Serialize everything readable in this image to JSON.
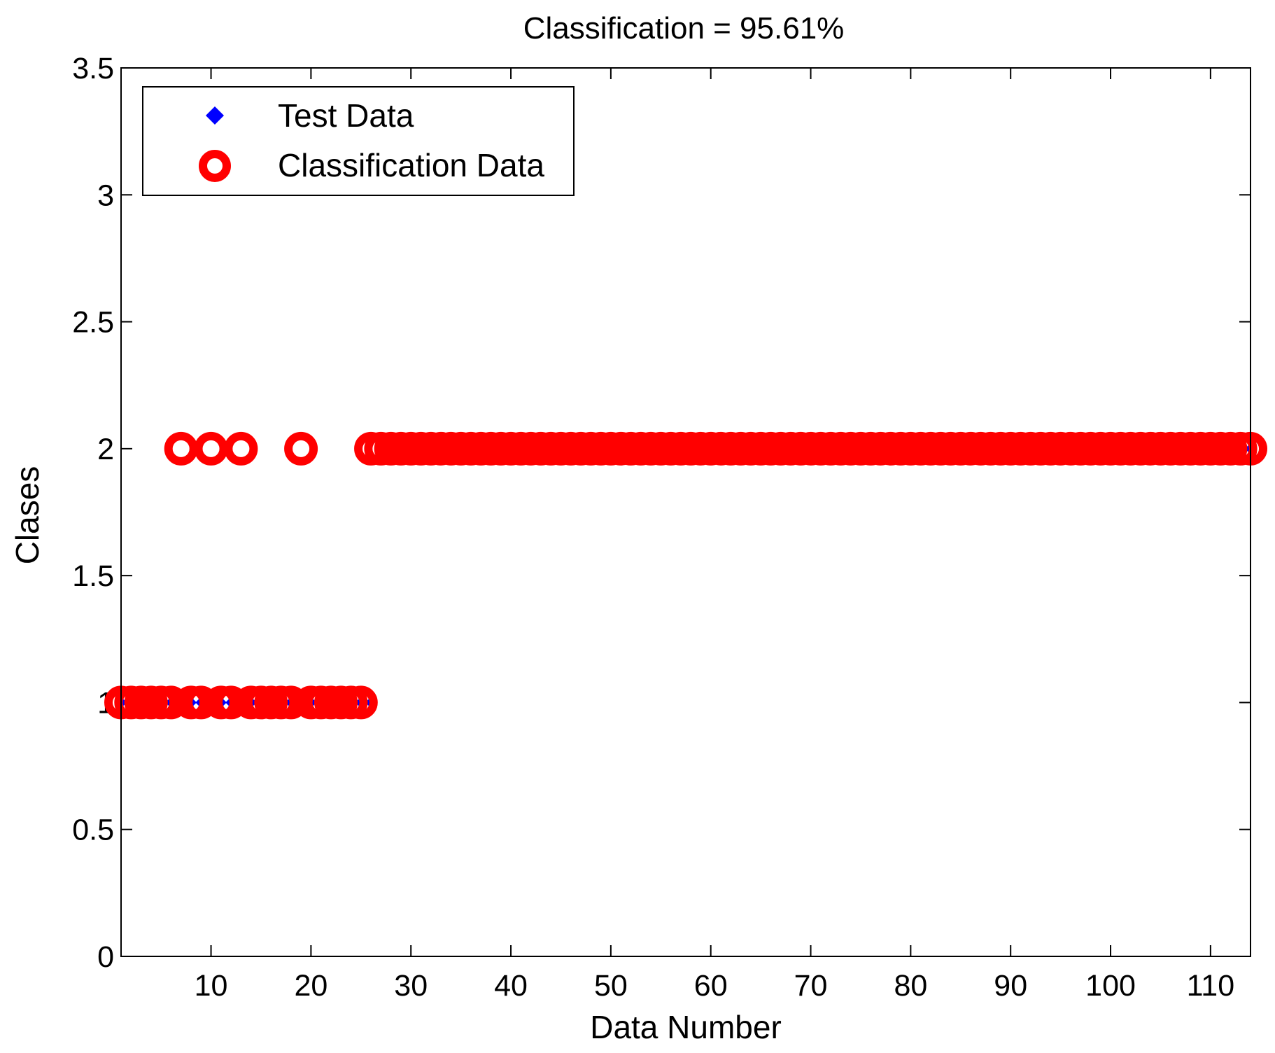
{
  "chart_data": {
    "type": "scatter",
    "title": "Classification = 95.61%",
    "xlabel": "Data Number",
    "ylabel": "Clases",
    "xlim": [
      1,
      114
    ],
    "ylim": [
      0,
      3.5
    ],
    "xticks": [
      10,
      20,
      30,
      40,
      50,
      60,
      70,
      80,
      90,
      100,
      110
    ],
    "yticks": [
      0,
      0.5,
      1,
      1.5,
      2,
      2.5,
      3,
      3.5
    ],
    "xtick_labels": [
      "10",
      "20",
      "30",
      "40",
      "50",
      "60",
      "70",
      "80",
      "90",
      "100",
      "110"
    ],
    "ytick_labels": [
      "0",
      "0.5",
      "1",
      "1.5",
      "2",
      "2.5",
      "3",
      "3.5"
    ],
    "grid": false,
    "legend_position": "top-left",
    "series": [
      {
        "name": "Test Data",
        "marker": "filled-diamond",
        "color": "#0000ff",
        "x": [
          1,
          2,
          3,
          4,
          5,
          6,
          7,
          8,
          9,
          10,
          11,
          12,
          13,
          14,
          15,
          16,
          17,
          18,
          19,
          20,
          21,
          22,
          23,
          24,
          25,
          26,
          27,
          28,
          29,
          30,
          31,
          32,
          33,
          34,
          35,
          36,
          37,
          38,
          39,
          40,
          41,
          42,
          43,
          44,
          45,
          46,
          47,
          48,
          49,
          50,
          51,
          52,
          53,
          54,
          55,
          56,
          57,
          58,
          59,
          60,
          61,
          62,
          63,
          64,
          65,
          66,
          67,
          68,
          69,
          70,
          71,
          72,
          73,
          74,
          75,
          76,
          77,
          78,
          79,
          80,
          81,
          82,
          83,
          84,
          85,
          86,
          87,
          88,
          89,
          90,
          91,
          92,
          93,
          94,
          95,
          96,
          97,
          98,
          99,
          100,
          101,
          102,
          103,
          104,
          105,
          106,
          107,
          108,
          109,
          110,
          111,
          112,
          113,
          114
        ],
        "y": [
          1,
          1,
          1,
          1,
          1,
          1,
          1,
          1,
          1,
          1,
          1,
          1,
          1,
          1,
          1,
          1,
          1,
          1,
          1,
          1,
          1,
          1,
          1,
          1,
          1,
          1,
          2,
          2,
          2,
          2,
          2,
          2,
          2,
          2,
          2,
          2,
          2,
          2,
          2,
          2,
          2,
          2,
          2,
          2,
          2,
          2,
          2,
          2,
          2,
          2,
          2,
          2,
          2,
          2,
          2,
          2,
          2,
          2,
          2,
          2,
          2,
          2,
          2,
          2,
          2,
          2,
          2,
          2,
          2,
          2,
          2,
          2,
          2,
          2,
          2,
          2,
          2,
          2,
          2,
          2,
          2,
          2,
          2,
          2,
          2,
          2,
          2,
          2,
          2,
          2,
          2,
          2,
          2,
          2,
          2,
          2,
          2,
          2,
          2,
          2,
          2,
          2,
          2,
          2,
          2,
          2,
          2,
          2,
          2,
          2,
          2,
          2,
          2,
          2
        ]
      },
      {
        "name": "Classification Data",
        "marker": "open-circle",
        "color": "#ff0000",
        "x": [
          1,
          2,
          3,
          4,
          5,
          6,
          7,
          8,
          9,
          10,
          11,
          12,
          13,
          14,
          15,
          16,
          17,
          18,
          19,
          20,
          21,
          22,
          23,
          24,
          25,
          26,
          27,
          28,
          29,
          30,
          31,
          32,
          33,
          34,
          35,
          36,
          37,
          38,
          39,
          40,
          41,
          42,
          43,
          44,
          45,
          46,
          47,
          48,
          49,
          50,
          51,
          52,
          53,
          54,
          55,
          56,
          57,
          58,
          59,
          60,
          61,
          62,
          63,
          64,
          65,
          66,
          67,
          68,
          69,
          70,
          71,
          72,
          73,
          74,
          75,
          76,
          77,
          78,
          79,
          80,
          81,
          82,
          83,
          84,
          85,
          86,
          87,
          88,
          89,
          90,
          91,
          92,
          93,
          94,
          95,
          96,
          97,
          98,
          99,
          100,
          101,
          102,
          103,
          104,
          105,
          106,
          107,
          108,
          109,
          110,
          111,
          112,
          113,
          114
        ],
        "y": [
          1,
          1,
          1,
          1,
          1,
          1,
          2,
          1,
          1,
          2,
          1,
          1,
          2,
          1,
          1,
          1,
          1,
          1,
          2,
          1,
          1,
          1,
          1,
          1,
          1,
          2,
          2,
          2,
          2,
          2,
          2,
          2,
          2,
          2,
          2,
          2,
          2,
          2,
          2,
          2,
          2,
          2,
          2,
          2,
          2,
          2,
          2,
          2,
          2,
          2,
          2,
          2,
          2,
          2,
          2,
          2,
          2,
          2,
          2,
          2,
          2,
          2,
          2,
          2,
          2,
          2,
          2,
          2,
          2,
          2,
          2,
          2,
          2,
          2,
          2,
          2,
          2,
          2,
          2,
          2,
          2,
          2,
          2,
          2,
          2,
          2,
          2,
          2,
          2,
          2,
          2,
          2,
          2,
          2,
          2,
          2,
          2,
          2,
          2,
          2,
          2,
          2,
          2,
          2,
          2,
          2,
          2,
          2,
          2,
          2,
          2,
          2,
          2,
          2
        ]
      }
    ]
  }
}
